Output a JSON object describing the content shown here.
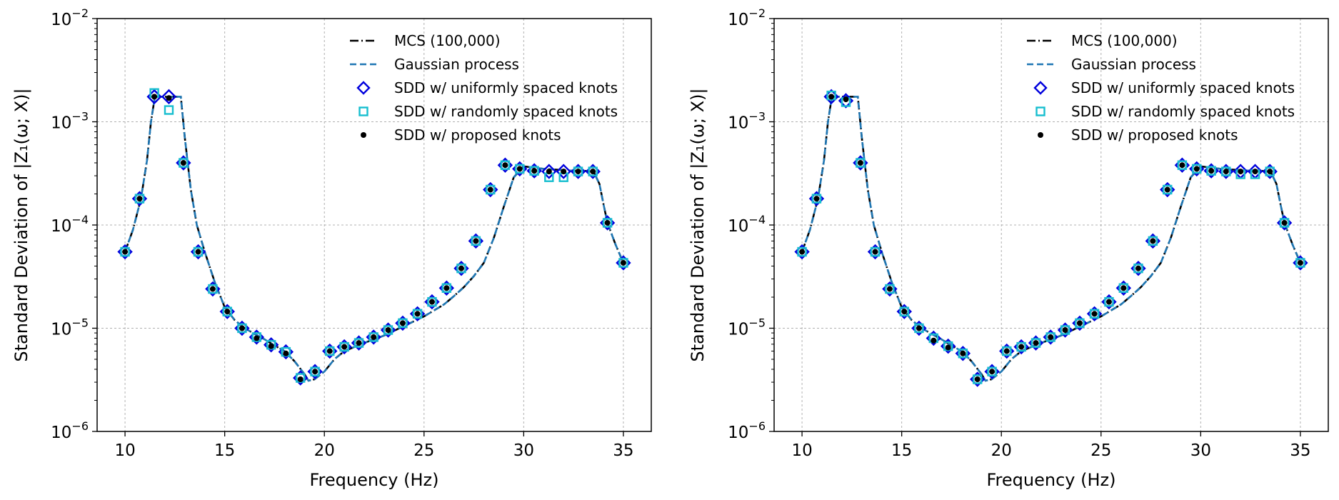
{
  "chart_data": [
    {
      "type": "line",
      "panel": "left",
      "xlabel": "Frequency (Hz)",
      "ylabel": "Standard Deviation of |Z₁(ω; X)|",
      "yscale": "log",
      "xlim": [
        8.6,
        36.4
      ],
      "ylim": [
        1e-06,
        0.01
      ],
      "xticks": [
        10,
        15,
        20,
        25,
        30,
        35
      ],
      "xtick_labels": [
        "10",
        "15",
        "20",
        "25",
        "30",
        "35"
      ],
      "yticks": [
        -6,
        -5,
        -4,
        -3,
        -2
      ],
      "grid": true,
      "legend_position": "top-right",
      "legend": [
        "MCS (100,000)",
        "Gaussian process",
        "SDD w/ uniformly spaced knots",
        "SDD w/ randomly spaced knots",
        "SDD w/ proposed knots"
      ],
      "curve": {
        "x": [
          10,
          10.4,
          10.8,
          11.1,
          11.3,
          11.5,
          12,
          12.5,
          12.8,
          13.0,
          13.3,
          13.6,
          14,
          14.5,
          15,
          15.5,
          16,
          16.5,
          17,
          17.5,
          18,
          18.5,
          19,
          19.2,
          19.5,
          20,
          20.5,
          21,
          22,
          23,
          24,
          25,
          26,
          26.5,
          27,
          27.5,
          28,
          28.5,
          29,
          29.5,
          30,
          31,
          32,
          32.5,
          33,
          33.5,
          33.8,
          34,
          34.2,
          34.6,
          35
        ],
        "values": [
          5.5e-05,
          9e-05,
          0.00018,
          0.00042,
          0.001,
          0.00175,
          0.00175,
          0.00175,
          0.00175,
          0.0007,
          0.00022,
          0.0001,
          5.5e-05,
          2.8e-05,
          1.6e-05,
          1.2e-05,
          1e-05,
          8.8e-06,
          7.8e-06,
          6.8e-06,
          6e-06,
          4.8e-06,
          3.6e-06,
          3.1e-06,
          3.2e-06,
          3.8e-06,
          5e-06,
          6e-06,
          7.2e-06,
          8.5e-06,
          1.05e-05,
          1.3e-05,
          1.7e-05,
          2.05e-05,
          2.5e-05,
          3.2e-05,
          4.3e-05,
          7.5e-05,
          0.00015,
          0.00029,
          0.00037,
          0.00035,
          0.00034,
          0.000335,
          0.000335,
          0.00033,
          0.00025,
          0.00016,
          0.000105,
          6.5e-05,
          4.3e-05
        ]
      },
      "markers": {
        "x": [
          10,
          10.73,
          11.47,
          12.2,
          12.93,
          13.67,
          14.4,
          15.13,
          15.87,
          16.6,
          17.33,
          18.07,
          18.8,
          19.53,
          20.27,
          21,
          21.73,
          22.47,
          23.2,
          23.93,
          24.67,
          25.4,
          26.13,
          26.87,
          27.6,
          28.33,
          29.07,
          29.8,
          30.53,
          31.27,
          32,
          32.73,
          33.47,
          34.2,
          35
        ],
        "uniform": [
          5.5e-05,
          0.00018,
          0.00175,
          0.00175,
          0.0004,
          5.5e-05,
          2.4e-05,
          1.45e-05,
          1e-05,
          8.2e-06,
          6.9e-06,
          5.9e-06,
          3.3e-06,
          3.8e-06,
          6e-06,
          6.6e-06,
          7.2e-06,
          8.2e-06,
          9.6e-06,
          1.12e-05,
          1.38e-05,
          1.8e-05,
          2.45e-05,
          3.8e-05,
          7e-05,
          0.00022,
          0.00038,
          0.00035,
          0.000335,
          0.00033,
          0.00033,
          0.00033,
          0.00033,
          0.000105,
          4.3e-05
        ],
        "random": [
          5.5e-05,
          0.00018,
          0.0019,
          0.0013,
          0.0004,
          5.5e-05,
          2.4e-05,
          1.45e-05,
          1e-05,
          8.2e-06,
          6.9e-06,
          5.9e-06,
          3.3e-06,
          3.8e-06,
          6e-06,
          6.6e-06,
          7.2e-06,
          8.2e-06,
          9.6e-06,
          1.12e-05,
          1.38e-05,
          1.8e-05,
          2.45e-05,
          3.8e-05,
          7e-05,
          0.00022,
          0.00038,
          0.00035,
          0.000335,
          0.00029,
          0.00029,
          0.00033,
          0.00033,
          0.000105,
          4.3e-05
        ],
        "proposed": [
          5.5e-05,
          0.00018,
          0.00175,
          0.0017,
          0.0004,
          5.5e-05,
          2.4e-05,
          1.45e-05,
          1e-05,
          8e-06,
          6.7e-06,
          5.7e-06,
          3.2e-06,
          3.8e-06,
          6e-06,
          6.6e-06,
          7.2e-06,
          8.2e-06,
          9.6e-06,
          1.12e-05,
          1.38e-05,
          1.8e-05,
          2.45e-05,
          3.8e-05,
          7e-05,
          0.00022,
          0.00038,
          0.00035,
          0.000335,
          0.00033,
          0.00033,
          0.00033,
          0.00033,
          0.000105,
          4.3e-05
        ]
      }
    },
    {
      "type": "line",
      "panel": "right",
      "xlabel": "Frequency (Hz)",
      "ylabel": "Standard Deviation of |Z₁(ω; X)|",
      "yscale": "log",
      "xlim": [
        8.6,
        36.4
      ],
      "ylim": [
        1e-06,
        0.01
      ],
      "xticks": [
        10,
        15,
        20,
        25,
        30,
        35
      ],
      "xtick_labels": [
        "10",
        "15",
        "20",
        "25",
        "30",
        "35"
      ],
      "yticks": [
        -6,
        -5,
        -4,
        -3,
        -2
      ],
      "grid": true,
      "legend_position": "top-right",
      "legend": [
        "MCS (100,000)",
        "Gaussian process",
        "SDD w/ uniformly spaced knots",
        "SDD w/ randomly spaced knots",
        "SDD w/ proposed knots"
      ],
      "curve": {
        "x": [
          10,
          10.4,
          10.8,
          11.1,
          11.3,
          11.5,
          12,
          12.5,
          12.8,
          13.0,
          13.3,
          13.6,
          14,
          14.5,
          15,
          15.5,
          16,
          16.5,
          17,
          17.5,
          18,
          18.5,
          19,
          19.2,
          19.5,
          20,
          20.5,
          21,
          22,
          23,
          24,
          25,
          26,
          26.5,
          27,
          27.5,
          28,
          28.5,
          29,
          29.5,
          30,
          31,
          32,
          32.5,
          33,
          33.5,
          33.8,
          34,
          34.2,
          34.6,
          35
        ],
        "values": [
          5.5e-05,
          9e-05,
          0.00018,
          0.00042,
          0.001,
          0.00175,
          0.00175,
          0.00175,
          0.00175,
          0.0007,
          0.00022,
          0.0001,
          5.5e-05,
          2.8e-05,
          1.6e-05,
          1.2e-05,
          1e-05,
          8.8e-06,
          7.8e-06,
          6.8e-06,
          6e-06,
          4.8e-06,
          3.6e-06,
          3.1e-06,
          3.2e-06,
          3.8e-06,
          5e-06,
          6e-06,
          7.2e-06,
          8.5e-06,
          1.05e-05,
          1.3e-05,
          1.7e-05,
          2.05e-05,
          2.5e-05,
          3.2e-05,
          4.3e-05,
          7.5e-05,
          0.00015,
          0.00029,
          0.00037,
          0.00035,
          0.00034,
          0.000335,
          0.000335,
          0.00033,
          0.00025,
          0.00016,
          0.000105,
          6.5e-05,
          4.3e-05
        ]
      },
      "markers": {
        "x": [
          10,
          10.73,
          11.47,
          12.2,
          12.93,
          13.67,
          14.4,
          15.13,
          15.87,
          16.6,
          17.33,
          18.07,
          18.8,
          19.53,
          20.27,
          21,
          21.73,
          22.47,
          23.2,
          23.93,
          24.67,
          25.4,
          26.13,
          26.87,
          27.6,
          28.33,
          29.07,
          29.8,
          30.53,
          31.27,
          32,
          32.73,
          33.47,
          34.2,
          35
        ],
        "uniform": [
          5.5e-05,
          0.00018,
          0.00175,
          0.0016,
          0.0004,
          5.5e-05,
          2.4e-05,
          1.45e-05,
          1e-05,
          8e-06,
          6.7e-06,
          5.7e-06,
          3.2e-06,
          3.8e-06,
          6e-06,
          6.6e-06,
          7.2e-06,
          8.2e-06,
          9.6e-06,
          1.12e-05,
          1.38e-05,
          1.8e-05,
          2.45e-05,
          3.8e-05,
          7e-05,
          0.00022,
          0.00038,
          0.00035,
          0.000335,
          0.00033,
          0.00033,
          0.00033,
          0.00033,
          0.000105,
          4.3e-05
        ],
        "random": [
          5.5e-05,
          0.00018,
          0.0018,
          0.00155,
          0.0004,
          5.5e-05,
          2.4e-05,
          1.45e-05,
          1e-05,
          8e-06,
          6.7e-06,
          5.7e-06,
          3.2e-06,
          3.8e-06,
          6e-06,
          6.6e-06,
          7.2e-06,
          8.2e-06,
          9.6e-06,
          1.12e-05,
          1.38e-05,
          1.8e-05,
          2.45e-05,
          3.8e-05,
          7e-05,
          0.00022,
          0.00038,
          0.00035,
          0.000335,
          0.00033,
          0.00031,
          0.00031,
          0.00033,
          0.000105,
          4.3e-05
        ],
        "proposed": [
          5.5e-05,
          0.00018,
          0.00175,
          0.00165,
          0.0004,
          5.5e-05,
          2.4e-05,
          1.45e-05,
          1e-05,
          7.6e-06,
          6.5e-06,
          5.7e-06,
          3.2e-06,
          3.8e-06,
          6e-06,
          6.6e-06,
          7.2e-06,
          8.2e-06,
          9.6e-06,
          1.12e-05,
          1.38e-05,
          1.8e-05,
          2.45e-05,
          3.8e-05,
          7e-05,
          0.00022,
          0.00038,
          0.00035,
          0.000335,
          0.00033,
          0.00033,
          0.00033,
          0.00033,
          0.000105,
          4.3e-05
        ]
      }
    }
  ],
  "style": {
    "mcs_color": "#000000",
    "gp_color": "#1f77b4",
    "uniform_color": "#0000dd",
    "random_color": "#17becf",
    "proposed_color": "#000000",
    "grid_color": "#b0b0b0"
  }
}
